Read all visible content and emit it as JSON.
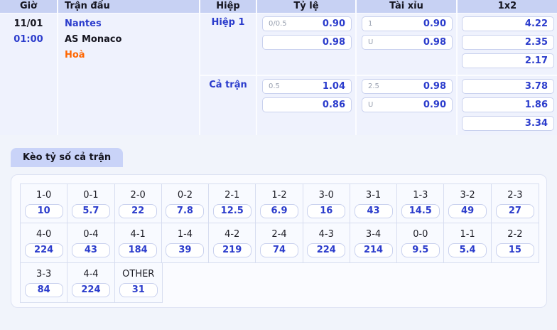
{
  "colors": {
    "accent_blue": "#2b3ccc",
    "header_bg": "#c7d1f3",
    "tab_bg": "#c9d3f8",
    "draw_orange": "#ff6600",
    "table_bg": "#eff2fd",
    "page_bg": "#f1f4fb"
  },
  "match_table": {
    "headers": {
      "time": "Giờ",
      "match": "Trận đấu",
      "half": "Hiệp",
      "odds": "Tỷ lệ",
      "over_under": "Tài xỉu",
      "one_x_two": "1x2"
    },
    "match": {
      "date": "11/01",
      "kickoff": "01:00",
      "home": "Nantes",
      "away": "AS Monaco",
      "result": "Hoà"
    },
    "sections": [
      {
        "label": "Hiệp 1",
        "handicap": [
          {
            "line": "0/0.5",
            "odds": "0.90"
          },
          {
            "line": "",
            "odds": "0.98"
          }
        ],
        "over_under": [
          {
            "line": "1",
            "odds": "0.90"
          },
          {
            "line": "U",
            "odds": "0.98"
          }
        ],
        "one_x_two": [
          "4.22",
          "2.35",
          "2.17"
        ]
      },
      {
        "label": "Cả trận",
        "handicap": [
          {
            "line": "0.5",
            "odds": "1.04"
          },
          {
            "line": "",
            "odds": "0.86"
          }
        ],
        "over_under": [
          {
            "line": "2.5",
            "odds": "0.98"
          },
          {
            "line": "U",
            "odds": "0.90"
          }
        ],
        "one_x_two": [
          "3.78",
          "1.86",
          "3.34"
        ]
      }
    ]
  },
  "score_panel": {
    "tab_label": "Kèo tỷ số cả trận",
    "rows": [
      [
        {
          "score": "1-0",
          "odds": "10"
        },
        {
          "score": "0-1",
          "odds": "5.7"
        },
        {
          "score": "2-0",
          "odds": "22"
        },
        {
          "score": "0-2",
          "odds": "7.8"
        },
        {
          "score": "2-1",
          "odds": "12.5"
        },
        {
          "score": "1-2",
          "odds": "6.9"
        },
        {
          "score": "3-0",
          "odds": "16"
        },
        {
          "score": "3-1",
          "odds": "43"
        },
        {
          "score": "1-3",
          "odds": "14.5"
        },
        {
          "score": "3-2",
          "odds": "49"
        },
        {
          "score": "2-3",
          "odds": "27"
        }
      ],
      [
        {
          "score": "4-0",
          "odds": "224"
        },
        {
          "score": "0-4",
          "odds": "43"
        },
        {
          "score": "4-1",
          "odds": "184"
        },
        {
          "score": "1-4",
          "odds": "39"
        },
        {
          "score": "4-2",
          "odds": "219"
        },
        {
          "score": "2-4",
          "odds": "74"
        },
        {
          "score": "4-3",
          "odds": "224"
        },
        {
          "score": "3-4",
          "odds": "214"
        },
        {
          "score": "0-0",
          "odds": "9.5"
        },
        {
          "score": "1-1",
          "odds": "5.4"
        },
        {
          "score": "2-2",
          "odds": "15"
        }
      ],
      [
        {
          "score": "3-3",
          "odds": "84"
        },
        {
          "score": "4-4",
          "odds": "224"
        },
        {
          "score": "OTHER",
          "odds": "31"
        }
      ]
    ]
  }
}
